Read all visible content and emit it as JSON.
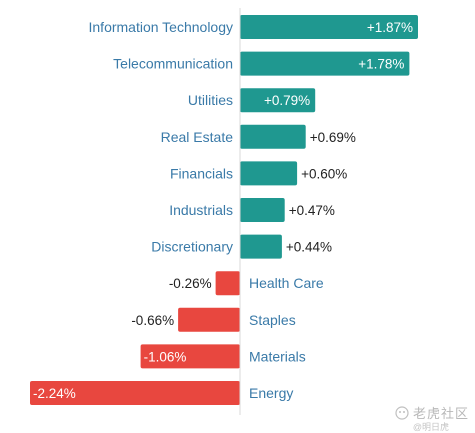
{
  "chart_data": {
    "type": "bar",
    "orientation": "horizontal",
    "categories": [
      "Information Technology",
      "Telecommunication",
      "Utilities",
      "Real Estate",
      "Financials",
      "Industrials",
      "Discretionary",
      "Health Care",
      "Staples",
      "Materials",
      "Energy"
    ],
    "values": [
      1.87,
      1.78,
      0.79,
      0.69,
      0.6,
      0.47,
      0.44,
      -0.26,
      -0.66,
      -1.06,
      -2.24
    ],
    "value_labels": [
      "+1.87%",
      "+1.78%",
      "+0.79%",
      "+0.69%",
      "+0.60%",
      "+0.47%",
      "+0.44%",
      "-0.26%",
      "-0.66%",
      "-1.06%",
      "-2.24%"
    ],
    "xlim": [
      -2.24,
      1.87
    ],
    "grid": false,
    "colors": {
      "positive": "#1f9890",
      "negative": "#e8473f",
      "category_text": "#3a7aa8",
      "value_text": "#222222",
      "inside_label": "#ffffff",
      "axis": "#d9d9d9"
    }
  },
  "watermark": {
    "icon": "tiger-head-icon",
    "text": "老虎社区",
    "subtext": "@明日虎"
  }
}
